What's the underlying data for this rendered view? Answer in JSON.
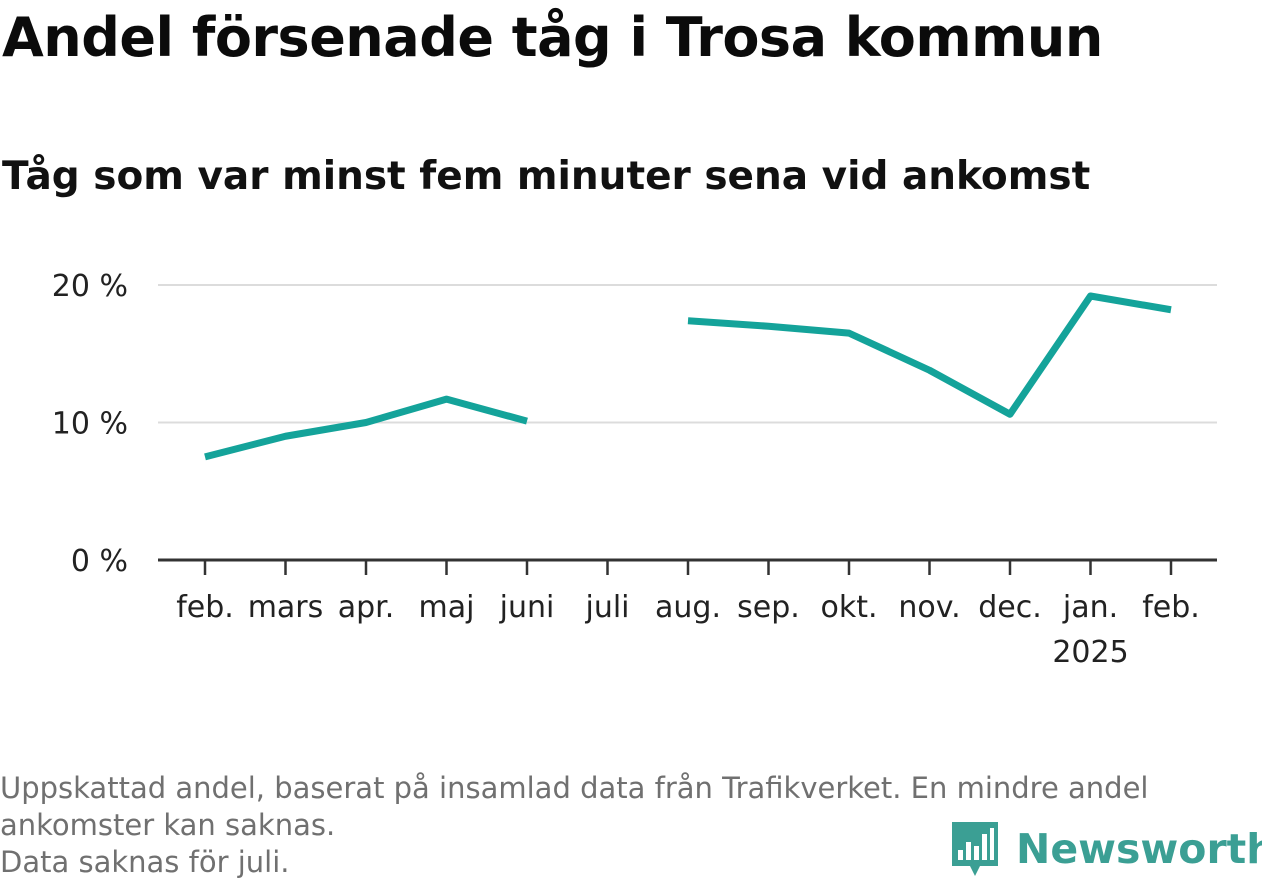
{
  "title": "Andel försenade tåg i Trosa kommun",
  "subtitle": "Tåg som var minst fem minuter sena vid ankomst",
  "footnote": {
    "line1": "Uppskattad andel, baserat på insamlad data från Trafikverket. En mindre andel",
    "line2": "ankomster kan saknas.",
    "line3": "Data saknas för juli."
  },
  "brand": {
    "name": "Newsworthy",
    "icon": "bar-chart-pin-icon",
    "color": "#3b9f94"
  },
  "colors": {
    "line": "#14a39a",
    "grid": "#dcdcdc",
    "axis": "#333333"
  },
  "chart_data": {
    "type": "line",
    "title": "Andel försenade tåg i Trosa kommun",
    "subtitle": "Tåg som var minst fem minuter sena vid ankomst",
    "categories": [
      "feb.",
      "mars",
      "apr.",
      "maj",
      "juni",
      "juli",
      "aug.",
      "sep.",
      "okt.",
      "nov.",
      "dec.",
      "jan.",
      "feb."
    ],
    "category_sublabels": [
      "",
      "",
      "",
      "",
      "",
      "",
      "",
      "",
      "",
      "",
      "",
      "2025",
      ""
    ],
    "series": [
      {
        "values": [
          7.5,
          9.0,
          10.0,
          11.7,
          10.1,
          null,
          17.4,
          17.0,
          16.5,
          13.8,
          10.6,
          19.2,
          18.2
        ]
      }
    ],
    "yticks": [
      {
        "value": 0,
        "label": "0 %"
      },
      {
        "value": 10,
        "label": "10 %"
      },
      {
        "value": 20,
        "label": "20 %"
      }
    ],
    "ylim": [
      0,
      20
    ],
    "grid": true,
    "legend": "none"
  }
}
